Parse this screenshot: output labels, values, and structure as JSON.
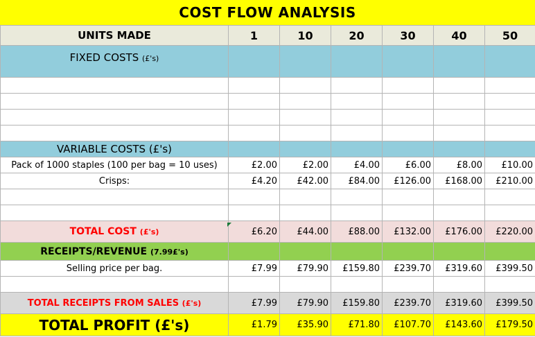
{
  "title": "COST FLOW ANALYSIS",
  "units": {
    "label": "UNITS MADE",
    "values": [
      "1",
      "10",
      "20",
      "30",
      "40",
      "50"
    ]
  },
  "fixed_costs": {
    "label": "FIXED COSTS",
    "suffix": "(£'s)"
  },
  "variable_costs": {
    "label": "VARIABLE COSTS",
    "suffix": "(£'s)"
  },
  "items": [
    {
      "label": "Pack of 1000 staples (100 per bag = 10 uses)",
      "values": [
        "£2.00",
        "£2.00",
        "£4.00",
        "£6.00",
        "£8.00",
        "£10.00"
      ]
    },
    {
      "label": "Crisps:",
      "values": [
        "£4.20",
        "£42.00",
        "£84.00",
        "£126.00",
        "£168.00",
        "£210.00"
      ]
    }
  ],
  "total_cost": {
    "label": "TOTAL COST",
    "suffix": "(£'s)",
    "values": [
      "£6.20",
      "£44.00",
      "£88.00",
      "£132.00",
      "£176.00",
      "£220.00"
    ]
  },
  "revenue": {
    "label": "RECEIPTS/REVENUE",
    "suffix": "(7.99£'s)"
  },
  "selling_price": {
    "label": "Selling price per bag.",
    "values": [
      "£7.99",
      "£79.90",
      "£159.80",
      "£239.70",
      "£319.60",
      "£399.50"
    ]
  },
  "total_receipts": {
    "label": "TOTAL RECEIPTS FROM SALES",
    "suffix": "(£'s)",
    "values": [
      "£7.99",
      "£79.90",
      "£159.80",
      "£239.70",
      "£319.60",
      "£399.50"
    ]
  },
  "total_profit": {
    "label": "TOTAL PROFIT (£'s)",
    "values": [
      "£1.79",
      "£35.90",
      "£71.80",
      "£107.70",
      "£143.60",
      "£179.50"
    ]
  },
  "colors": {
    "title_bg": "#ffff00",
    "header_bg": "#eaeadb",
    "section_bg": "#92cddc",
    "total_cost_bg": "#f2dcdb",
    "revenue_bg": "#92d050",
    "receipts_bg": "#d9d9d9",
    "accent_red": "#ff0000"
  }
}
